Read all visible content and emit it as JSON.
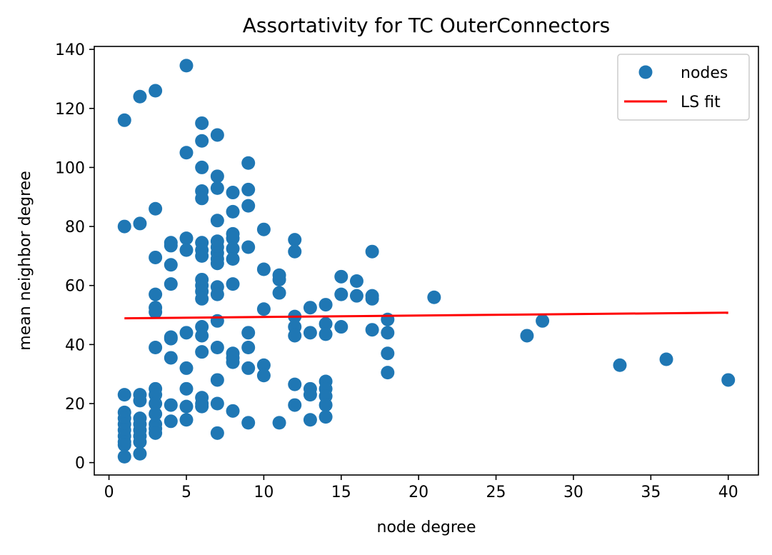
{
  "chart_data": {
    "type": "scatter",
    "title": "Assortativity for TC OuterConnectors",
    "xlabel": "node degree",
    "ylabel": "mean neighbor degree",
    "xlim": [
      -0.95,
      41.95
    ],
    "ylim": [
      -4.2,
      141.0
    ],
    "xticks": [
      0,
      5,
      10,
      15,
      20,
      25,
      30,
      35,
      40
    ],
    "yticks": [
      0,
      20,
      40,
      60,
      80,
      100,
      120,
      140
    ],
    "grid": false,
    "legend_position": "top-right",
    "series": [
      {
        "name": "nodes",
        "kind": "scatter",
        "color": "#1f77b4",
        "points": [
          [
            1,
            116
          ],
          [
            1,
            80
          ],
          [
            1,
            23
          ],
          [
            1,
            17
          ],
          [
            1,
            15
          ],
          [
            1,
            13
          ],
          [
            1,
            11
          ],
          [
            1,
            9
          ],
          [
            1,
            7
          ],
          [
            1,
            6
          ],
          [
            1,
            2
          ],
          [
            2,
            124
          ],
          [
            2,
            81
          ],
          [
            2,
            23
          ],
          [
            2,
            21
          ],
          [
            2,
            15
          ],
          [
            2,
            13
          ],
          [
            2,
            11
          ],
          [
            2,
            9
          ],
          [
            2,
            7
          ],
          [
            2,
            3
          ],
          [
            3,
            126
          ],
          [
            3,
            86
          ],
          [
            3,
            69.5
          ],
          [
            3,
            57
          ],
          [
            3,
            52.5
          ],
          [
            3,
            51
          ],
          [
            3,
            39
          ],
          [
            3,
            25
          ],
          [
            3,
            23
          ],
          [
            3,
            20
          ],
          [
            3,
            16.5
          ],
          [
            3,
            13
          ],
          [
            3,
            11.5
          ],
          [
            3,
            10
          ],
          [
            4,
            74.5
          ],
          [
            4,
            73.5
          ],
          [
            4,
            67
          ],
          [
            4,
            60.5
          ],
          [
            4,
            42.5
          ],
          [
            4,
            42
          ],
          [
            4,
            35.5
          ],
          [
            4,
            19.5
          ],
          [
            4,
            14
          ],
          [
            5,
            134.5
          ],
          [
            5,
            105
          ],
          [
            5,
            76
          ],
          [
            5,
            72
          ],
          [
            5,
            44
          ],
          [
            5,
            32
          ],
          [
            5,
            25
          ],
          [
            5,
            19
          ],
          [
            5,
            14.5
          ],
          [
            6,
            115
          ],
          [
            6,
            109
          ],
          [
            6,
            100
          ],
          [
            6,
            92
          ],
          [
            6,
            89.5
          ],
          [
            6,
            74.5
          ],
          [
            6,
            72
          ],
          [
            6,
            70
          ],
          [
            6,
            62
          ],
          [
            6,
            60
          ],
          [
            6,
            58
          ],
          [
            6,
            55.5
          ],
          [
            6,
            46
          ],
          [
            6,
            43
          ],
          [
            6,
            37.5
          ],
          [
            6,
            22
          ],
          [
            6,
            20
          ],
          [
            6,
            19
          ],
          [
            7,
            111
          ],
          [
            7,
            97
          ],
          [
            7,
            93
          ],
          [
            7,
            82
          ],
          [
            7,
            75
          ],
          [
            7,
            73
          ],
          [
            7,
            71
          ],
          [
            7,
            69
          ],
          [
            7,
            67.5
          ],
          [
            7,
            59.5
          ],
          [
            7,
            57
          ],
          [
            7,
            48
          ],
          [
            7,
            39
          ],
          [
            7,
            28
          ],
          [
            7,
            20
          ],
          [
            7,
            10
          ],
          [
            8,
            91.5
          ],
          [
            8,
            85
          ],
          [
            8,
            77.5
          ],
          [
            8,
            76
          ],
          [
            8,
            72.5
          ],
          [
            8,
            69
          ],
          [
            8,
            60.5
          ],
          [
            8,
            37
          ],
          [
            8,
            35.5
          ],
          [
            8,
            34
          ],
          [
            8,
            17.5
          ],
          [
            9,
            101.5
          ],
          [
            9,
            92.5
          ],
          [
            9,
            87
          ],
          [
            9,
            73
          ],
          [
            9,
            44
          ],
          [
            9,
            39
          ],
          [
            9,
            32
          ],
          [
            9,
            13.5
          ],
          [
            10,
            79
          ],
          [
            10,
            65.5
          ],
          [
            10,
            52
          ],
          [
            10,
            33
          ],
          [
            10,
            29.5
          ],
          [
            11,
            63.5
          ],
          [
            11,
            62
          ],
          [
            11,
            57.5
          ],
          [
            11,
            13.5
          ],
          [
            12,
            75.5
          ],
          [
            12,
            71.5
          ],
          [
            12,
            49.5
          ],
          [
            12,
            46
          ],
          [
            12,
            43
          ],
          [
            12,
            26.5
          ],
          [
            12,
            19.5
          ],
          [
            13,
            52.5
          ],
          [
            13,
            44
          ],
          [
            13,
            25
          ],
          [
            13,
            23
          ],
          [
            13,
            14.5
          ],
          [
            14,
            53.5
          ],
          [
            14,
            47
          ],
          [
            14,
            43.5
          ],
          [
            14,
            27.5
          ],
          [
            14,
            25
          ],
          [
            14,
            22.5
          ],
          [
            14,
            19.5
          ],
          [
            14,
            15.5
          ],
          [
            15,
            63
          ],
          [
            15,
            57
          ],
          [
            15,
            46
          ],
          [
            16,
            61.5
          ],
          [
            16,
            56.5
          ],
          [
            17,
            71.5
          ],
          [
            17,
            56.5
          ],
          [
            17,
            55.5
          ],
          [
            17,
            45
          ],
          [
            18,
            48.5
          ],
          [
            18,
            44
          ],
          [
            18,
            37
          ],
          [
            18,
            30.5
          ],
          [
            21,
            56
          ],
          [
            27,
            43
          ],
          [
            28,
            48
          ],
          [
            33,
            33
          ],
          [
            36,
            35
          ],
          [
            40,
            28
          ]
        ]
      },
      {
        "name": "LS fit",
        "kind": "line",
        "color": "#ff0000",
        "x": [
          1,
          40
        ],
        "y": [
          48.9,
          50.8
        ]
      }
    ]
  }
}
